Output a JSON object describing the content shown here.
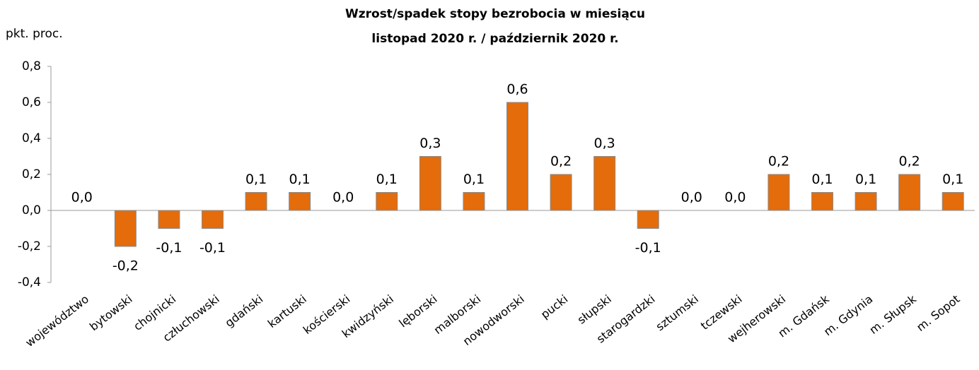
{
  "chart_data": {
    "type": "bar",
    "title": [
      "Wzrost/spadek stopy bezrobocia w miesiącu",
      "listopad 2020 r. / październik 2020 r."
    ],
    "y_label": "pkt. proc.",
    "categories": [
      "województwo",
      "bytowski",
      "chojnicki",
      "człuchowski",
      "gdański",
      "kartuski",
      "kościerski",
      "kwidzyński",
      "lęborski",
      "malborski",
      "nowodworski",
      "pucki",
      "słupski",
      "starogardzki",
      "sztumski",
      "tczewski",
      "wejherowski",
      "m. Gdańsk",
      "m. Gdynia",
      "m. Słupsk",
      "m. Sopot"
    ],
    "values": [
      0,
      -0.2,
      -0.1,
      -0.1,
      0.1,
      0.1,
      0,
      0.1,
      0.3,
      0.1,
      0.6,
      0.2,
      0.3,
      -0.1,
      0,
      0,
      0.2,
      0.1,
      0.1,
      0.2,
      0.1
    ],
    "value_labels": [
      "0,0",
      "-0,2",
      "-0,1",
      "-0,1",
      "0,1",
      "0,1",
      "0,0",
      "0,1",
      "0,3",
      "0,1",
      "0,6",
      "0,2",
      "0,3",
      "-0,1",
      "0,0",
      "0,0",
      "0,2",
      "0,1",
      "0,1",
      "0,2",
      "0,1"
    ],
    "color": "#e46c0a",
    "ylim": [
      -0.4,
      0.8
    ],
    "yticks": [
      {
        "value": -0.4,
        "label": "-0,4"
      },
      {
        "value": -0.2,
        "label": "-0,2"
      },
      {
        "value": 0,
        "label": "0,0"
      },
      {
        "value": 0.2,
        "label": "0,2"
      },
      {
        "value": 0.4,
        "label": "0,4"
      },
      {
        "value": 0.6,
        "label": "0,6"
      },
      {
        "value": 0.8,
        "label": "0,8"
      }
    ],
    "grid": false
  }
}
